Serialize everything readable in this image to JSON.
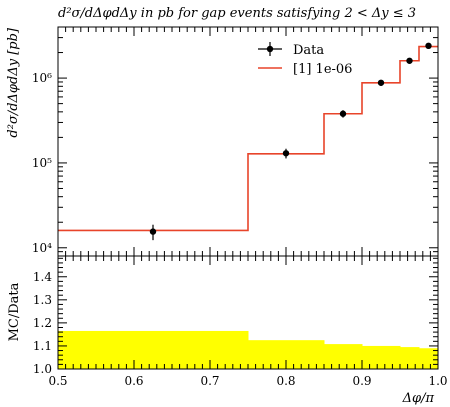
{
  "chart_data": [
    {
      "type": "line",
      "title": "d²σ/dΔφdΔy in pb for gap events satisfying 2 < Δy ≤ 3",
      "ylabel": "d²σ/dΔφdΔy [pb]",
      "xlabel": "Δφ/π",
      "xlim": [
        0.5,
        1.0
      ],
      "ylim": [
        8000,
        4000000
      ],
      "yscale": "log",
      "ytick_labels": [
        "10⁴",
        "10⁵",
        "10⁶"
      ],
      "legend": {
        "placement": "top-right",
        "entries": [
          "Data",
          "[1] 1e-06"
        ]
      },
      "series": [
        {
          "name": "Data",
          "style": "points-with-errorbars",
          "color": "#000000",
          "x": [
            0.625,
            0.8,
            0.875,
            0.925,
            0.9625,
            0.9875
          ],
          "y": [
            15500,
            130000,
            380000,
            880000,
            1600000,
            2400000
          ],
          "yerr_low": [
            3200,
            17000,
            38000,
            70000,
            100000,
            140000
          ],
          "yerr_high": [
            3200,
            17000,
            38000,
            70000,
            100000,
            140000
          ]
        },
        {
          "name": "[1] 1e-06",
          "style": "step-histogram",
          "color": "#e8442a",
          "bin_edges": [
            0.5,
            0.75,
            0.85,
            0.9,
            0.95,
            0.975,
            1.0
          ],
          "values": [
            16000,
            128000,
            380000,
            880000,
            1600000,
            2350000
          ]
        }
      ]
    },
    {
      "type": "area",
      "ylabel": "MC/Data",
      "xlabel": "Δφ/π",
      "xlim": [
        0.5,
        1.0
      ],
      "ylim": [
        1.0,
        1.49
      ],
      "x_tick_labels": [
        "0.5",
        "0.6",
        "0.7",
        "0.8",
        "0.9",
        "1.0"
      ],
      "y_tick_labels": [
        "1.0",
        "1.1",
        "1.2",
        "1.3",
        "1.4"
      ],
      "band": {
        "color": "#ffff00",
        "bin_edges": [
          0.5,
          0.75,
          0.85,
          0.9,
          0.95,
          0.975,
          1.0
        ],
        "upper": [
          1.165,
          1.125,
          1.108,
          1.1,
          1.095,
          1.09
        ],
        "lower": [
          1.0,
          1.0,
          1.0,
          1.0,
          1.0,
          1.0
        ]
      }
    }
  ]
}
